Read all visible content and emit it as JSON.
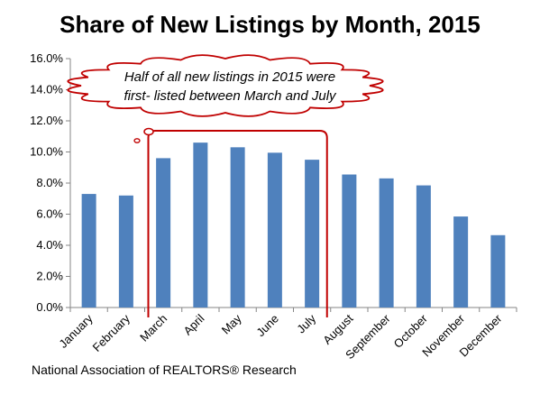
{
  "chart_data": {
    "type": "bar",
    "title": "Share of New Listings by Month, 2015",
    "categories": [
      "January",
      "February",
      "March",
      "April",
      "May",
      "June",
      "July",
      "August",
      "September",
      "October",
      "November",
      "December"
    ],
    "values": [
      7.3,
      7.2,
      9.6,
      10.6,
      10.3,
      9.95,
      9.5,
      8.55,
      8.3,
      7.85,
      5.85,
      4.65
    ],
    "value_unit": "%",
    "ylim": [
      0,
      16
    ],
    "yticks": [
      "0.0%",
      "2.0%",
      "4.0%",
      "6.0%",
      "8.0%",
      "10.0%",
      "12.0%",
      "14.0%",
      "16.0%"
    ],
    "xlabel": "",
    "ylabel": "",
    "grid": false,
    "legend": "none",
    "bar_color": "#4f81bd",
    "annotation": {
      "lines": [
        "Half of all new listings in 2015 were",
        "first- listed between March and July"
      ],
      "highlight_range": [
        "March",
        "July"
      ],
      "highlight_color": "#c00000"
    }
  },
  "source": "National Association of REALTORS® Research"
}
